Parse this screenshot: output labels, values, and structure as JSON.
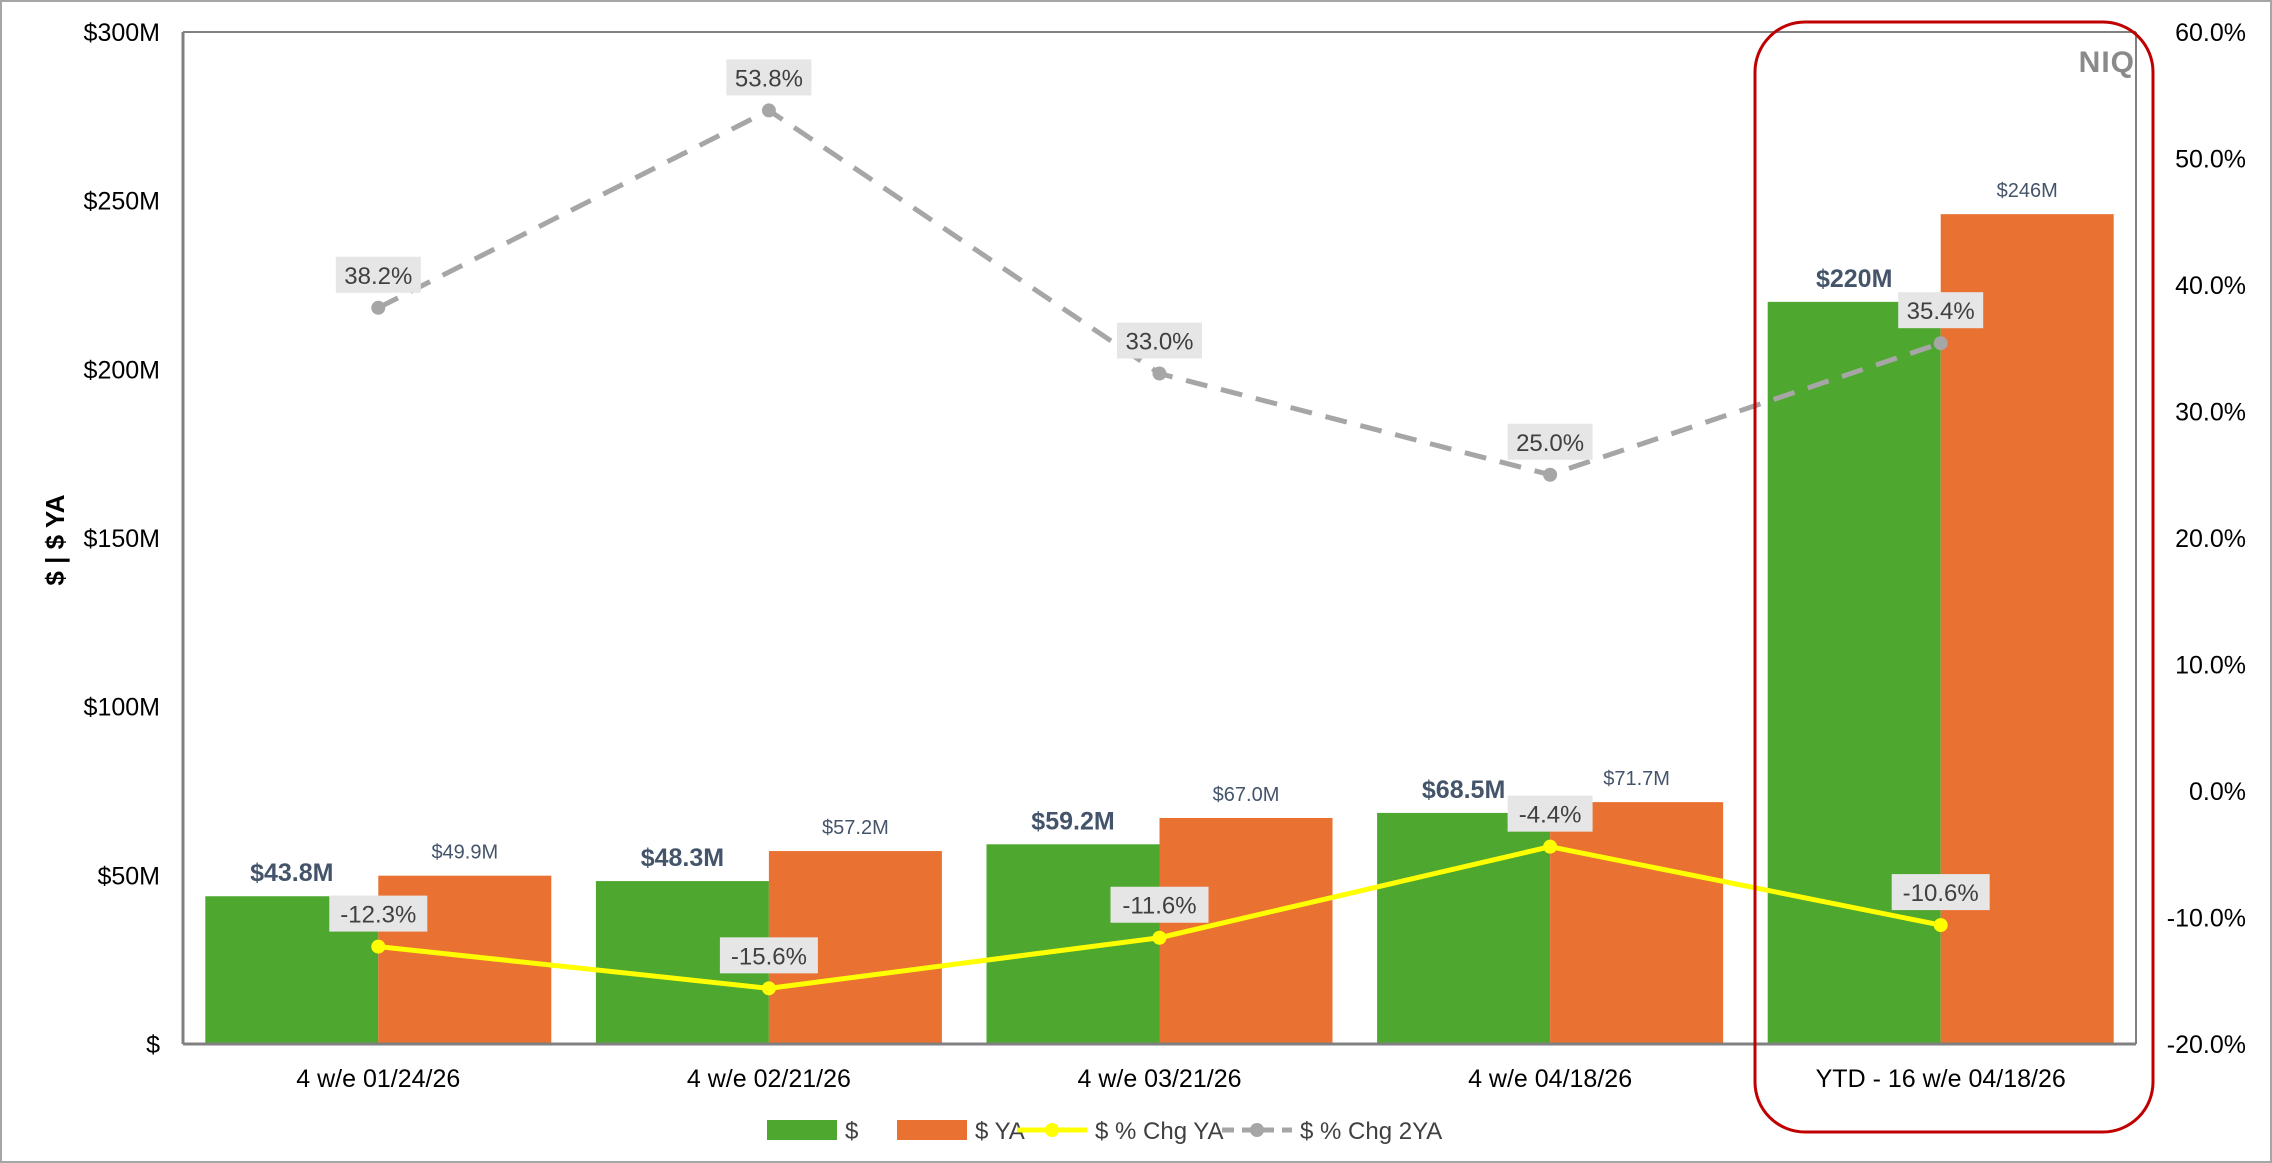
{
  "brand": {
    "logo_text": "NIQ"
  },
  "colors": {
    "dollars": "#4ea72e",
    "dollars_ya": "#e97132",
    "chg_ya": "#ffff00",
    "chg_2ya": "#a6a6a6",
    "highlight_box": "#c00000",
    "value_label": "#44546a"
  },
  "chart_data": {
    "type": "bar",
    "categories": [
      "4 w/e 01/24/26",
      "4 w/e 02/21/26",
      "4 w/e 03/21/26",
      "4 w/e 04/18/26",
      "YTD - 16 w/e 04/18/26"
    ],
    "ylabel": "$ | $ YA",
    "ylim": [
      0,
      300
    ],
    "y_ticks": [
      "$",
      "$50M",
      "$100M",
      "$150M",
      "$200M",
      "$250M",
      "$300M"
    ],
    "y2lim": [
      -20,
      60
    ],
    "y2_ticks": [
      "-20.0%",
      "-10.0%",
      "0.0%",
      "10.0%",
      "20.0%",
      "30.0%",
      "40.0%",
      "50.0%",
      "60.0%"
    ],
    "series": [
      {
        "name": "$",
        "type": "bar",
        "values": [
          43.8,
          48.3,
          59.2,
          68.5,
          220
        ],
        "labels": [
          "$43.8M",
          "$48.3M",
          "$59.2M",
          "$68.5M",
          "$220M"
        ]
      },
      {
        "name": "$ YA",
        "type": "bar",
        "values": [
          49.9,
          57.2,
          67.0,
          71.7,
          246
        ],
        "labels": [
          "$49.9M",
          "$57.2M",
          "$67.0M",
          "$71.7M",
          "$246M"
        ]
      },
      {
        "name": "$ % Chg YA",
        "type": "line",
        "axis": "right",
        "values": [
          -12.3,
          -15.6,
          -11.6,
          -4.4,
          -10.6
        ],
        "labels": [
          "-12.3%",
          "-15.6%",
          "-11.6%",
          "-4.4%",
          "-10.6%"
        ]
      },
      {
        "name": "$ % Chg 2YA",
        "type": "line",
        "axis": "right",
        "dashed": true,
        "values": [
          38.2,
          53.8,
          33.0,
          25.0,
          35.4
        ],
        "labels": [
          "38.2%",
          "53.8%",
          "33.0%",
          "25.0%",
          "35.4%"
        ]
      }
    ],
    "legend_position": "bottom",
    "highlighted_category": "YTD - 16 w/e 04/18/26",
    "grid": false
  }
}
